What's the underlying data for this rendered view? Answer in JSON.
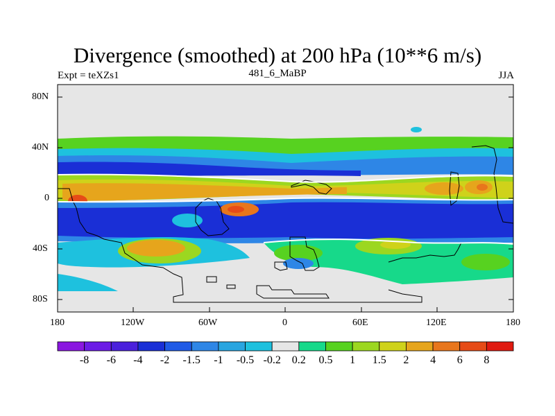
{
  "title": "Divergence (smoothed) at 200 hPa (10**6 m/s)",
  "experiment_label": "Expt = teXZs1",
  "case_label": "481_6_MaBP",
  "season_label": "JJA",
  "y_ticks": [
    "80N",
    "40N",
    "0",
    "40S",
    "80S"
  ],
  "x_ticks": [
    "180",
    "120W",
    "60W",
    "0",
    "60E",
    "120E",
    "180"
  ],
  "colorbar": {
    "colors": [
      "#8a17e0",
      "#6c1be6",
      "#4a20dc",
      "#1a2fd6",
      "#1f5ae6",
      "#2e86e6",
      "#28a5e0",
      "#1ec1de",
      "#e6e6e6",
      "#17d98a",
      "#57d220",
      "#9cd720",
      "#cfd21a",
      "#e6a51c",
      "#e8761c",
      "#e64b17",
      "#e01a10"
    ],
    "labels": [
      "-8",
      "-6",
      "-4",
      "-2",
      "-1.5",
      "-1",
      "-0.5",
      "-0.2",
      "0.2",
      "0.5",
      "1",
      "1.5",
      "2",
      "4",
      "6",
      "8"
    ]
  }
}
